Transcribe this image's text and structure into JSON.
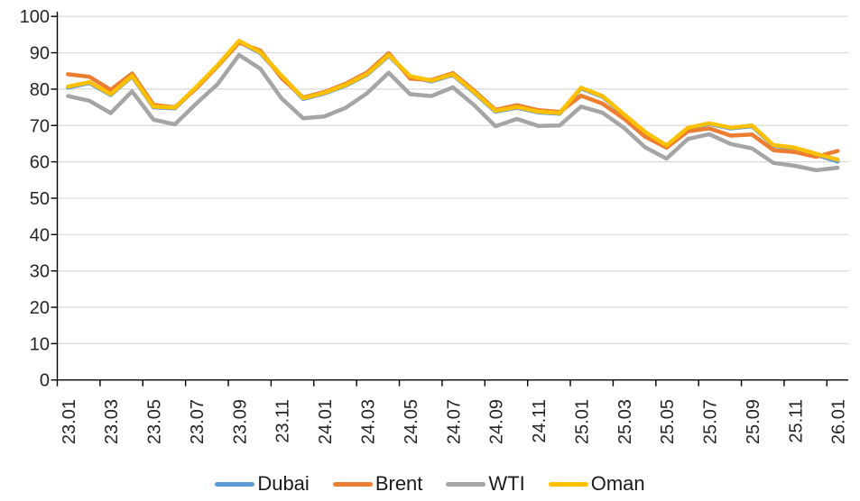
{
  "chart_data": {
    "type": "line",
    "title": "",
    "xlabel": "",
    "ylabel": "",
    "ylim": [
      0,
      100
    ],
    "y_tick_step": 10,
    "x_tick_label_interval": 2,
    "grid": "horizontal",
    "legend_position": "bottom",
    "axis_color": "#000000",
    "gridline_color": "#D9D9D9",
    "label_color": "#262626",
    "x_categories": [
      "23.01",
      "23.02",
      "23.03",
      "23.04",
      "23.05",
      "23.06",
      "23.07",
      "23.08",
      "23.09",
      "23.10",
      "23.11",
      "23.12",
      "24.01",
      "24.02",
      "24.03",
      "24.04",
      "24.05",
      "24.06",
      "24.07",
      "24.08",
      "24.09",
      "24.10",
      "24.11",
      "24.12",
      "25.01",
      "25.02",
      "25.03",
      "25.04",
      "25.05",
      "25.06",
      "25.07",
      "25.08",
      "25.09",
      "25.10",
      "25.11",
      "25.12",
      "26.01"
    ],
    "series": [
      {
        "name": "Dubai",
        "color": "#5B9BD5",
        "values": [
          80.4,
          81.7,
          78.4,
          83.5,
          75.0,
          74.7,
          80.4,
          86.4,
          93.0,
          89.9,
          83.5,
          77.3,
          78.8,
          81.0,
          84.0,
          89.2,
          83.4,
          82.1,
          83.9,
          79.0,
          73.8,
          74.9,
          73.6,
          73.2,
          80.2,
          77.9,
          72.9,
          68.0,
          64.3,
          69.2,
          70.4,
          69.2,
          69.8,
          64.4,
          63.7,
          61.9,
          60.1
        ]
      },
      {
        "name": "Brent",
        "color": "#ED7D31",
        "values": [
          84.1,
          83.4,
          79.8,
          84.3,
          75.7,
          75.0,
          80.2,
          86.3,
          92.8,
          90.6,
          83.0,
          77.7,
          79.2,
          81.5,
          84.6,
          89.9,
          82.9,
          82.5,
          84.4,
          79.6,
          74.3,
          75.6,
          74.2,
          73.7,
          78.2,
          76.0,
          71.9,
          66.9,
          63.9,
          68.4,
          69.2,
          67.2,
          67.5,
          63.2,
          62.7,
          61.4,
          63.0
        ]
      },
      {
        "name": "WTI",
        "color": "#A5A5A5",
        "values": [
          78.1,
          76.8,
          73.4,
          79.4,
          71.6,
          70.3,
          76.0,
          81.4,
          89.4,
          85.6,
          77.4,
          72.0,
          72.5,
          74.9,
          78.9,
          84.5,
          78.6,
          78.1,
          80.5,
          75.6,
          69.8,
          71.8,
          69.9,
          70.0,
          75.2,
          73.5,
          69.4,
          64.0,
          60.9,
          66.3,
          67.6,
          64.9,
          63.7,
          59.7,
          58.9,
          57.7,
          58.4
        ]
      },
      {
        "name": "Oman",
        "color": "#FFC000",
        "values": [
          80.7,
          81.9,
          78.6,
          83.7,
          75.2,
          74.9,
          80.6,
          86.6,
          93.3,
          90.1,
          83.7,
          77.5,
          79.0,
          81.2,
          84.2,
          89.4,
          83.6,
          82.3,
          84.1,
          79.2,
          74.0,
          75.1,
          73.8,
          73.4,
          80.4,
          78.1,
          73.1,
          68.2,
          64.5,
          69.4,
          70.6,
          69.4,
          70.0,
          64.6,
          63.9,
          62.2,
          60.6
        ]
      }
    ]
  }
}
